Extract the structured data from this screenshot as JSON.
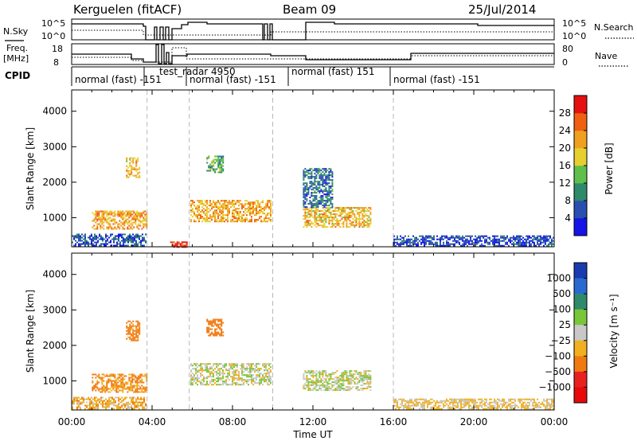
{
  "header": {
    "station": "Kerguelen (fitACF)",
    "beam": "Beam 09",
    "date": "25/Jul/2014"
  },
  "summary_panels": {
    "nsky_label": "N.Sky",
    "nsky_ticks": [
      "10^5",
      "10^0"
    ],
    "nsearch_label": "N.Search",
    "nsearch_ticks": [
      "10^5",
      "10^0"
    ],
    "freq_label_line1": "Freq.",
    "freq_label_line2": "[MHz]",
    "freq_ticks": [
      "18",
      "8"
    ],
    "nave_label": "Nave",
    "nave_ticks": [
      "80",
      "0"
    ],
    "cpid_label": "CPID",
    "cpid_segments": [
      {
        "label": "normal (fast) -151",
        "start_hr": 0.0,
        "end_hr": 3.75
      },
      {
        "label": "test_radar 4950",
        "start_hr": 3.75,
        "end_hr": 5.85
      },
      {
        "label": "normal (fast) -151",
        "start_hr": 5.85,
        "end_hr": 10.0
      },
      {
        "label": "normal (fast) 151",
        "start_hr": 10.0,
        "end_hr": 16.0
      },
      {
        "label": "normal (fast) -151",
        "start_hr": 16.0,
        "end_hr": 24.0
      }
    ]
  },
  "chart_data": [
    {
      "type": "heatmap",
      "quantity": "Power",
      "title": "",
      "xlabel": "",
      "ylabel": "Slant Range [km]",
      "xlim": [
        0,
        24
      ],
      "ylim": [
        180,
        4600
      ],
      "y_ticks": [
        "1000",
        "2000",
        "3000",
        "4000"
      ],
      "y_tick_values": [
        1000,
        2000,
        3000,
        4000
      ],
      "colorbar": {
        "label": "Power [dB]",
        "range": [
          0,
          32
        ],
        "ticks": [
          "4",
          "8",
          "12",
          "16",
          "20",
          "24",
          "28"
        ],
        "tick_values": [
          4,
          8,
          12,
          16,
          20,
          24,
          28
        ],
        "colors": [
          "#1515e6",
          "#2a4fb0",
          "#2e8a6a",
          "#5fbf4a",
          "#e6d030",
          "#f0a020",
          "#f06010",
          "#e61010"
        ]
      },
      "features": [
        {
          "t0": 0.0,
          "t1": 3.7,
          "r0": 200,
          "r1": 550,
          "value": 6
        },
        {
          "t0": 1.0,
          "t1": 3.7,
          "r0": 700,
          "r1": 1200,
          "value": 22
        },
        {
          "t0": 2.7,
          "t1": 3.4,
          "r0": 2150,
          "r1": 2700,
          "value": 20
        },
        {
          "t0": 4.9,
          "t1": 5.75,
          "r0": 180,
          "r1": 330,
          "value": 30
        },
        {
          "t0": 5.9,
          "t1": 9.9,
          "r0": 900,
          "r1": 1500,
          "value": 21
        },
        {
          "t0": 6.7,
          "t1": 7.5,
          "r0": 2300,
          "r1": 2750,
          "value": 12
        },
        {
          "t0": 11.5,
          "t1": 14.9,
          "r0": 750,
          "r1": 1300,
          "value": 20
        },
        {
          "t0": 11.5,
          "t1": 13.0,
          "r0": 1300,
          "r1": 2400,
          "value": 8
        },
        {
          "t0": 16.0,
          "t1": 24.0,
          "r0": 200,
          "r1": 500,
          "value": 5
        }
      ]
    },
    {
      "type": "heatmap",
      "quantity": "Velocity",
      "title": "",
      "xlabel": "Time UT",
      "ylabel": "Slant Range [km]",
      "xlim": [
        0,
        24
      ],
      "ylim": [
        180,
        4600
      ],
      "x_ticks": [
        "00:00",
        "04:00",
        "08:00",
        "12:00",
        "16:00",
        "20:00",
        "00:00"
      ],
      "x_tick_values": [
        0,
        4,
        8,
        12,
        16,
        20,
        24
      ],
      "y_ticks": [
        "1000",
        "2000",
        "3000",
        "4000"
      ],
      "y_tick_values": [
        1000,
        2000,
        3000,
        4000
      ],
      "colorbar": {
        "label": "Velocity [m s⁻¹]",
        "ticks": [
          "1000",
          "500",
          "100",
          "25",
          "−25",
          "−100",
          "−500",
          "−1000"
        ],
        "tick_values": [
          1000,
          500,
          100,
          25,
          -25,
          -100,
          -500,
          -1000
        ],
        "colors": [
          "#1a3ab0",
          "#2a6ad0",
          "#2e8a6a",
          "#7ac63a",
          "#c8c8c8",
          "#f0b020",
          "#f07a10",
          "#e82020",
          "#e60a0a"
        ]
      },
      "features": [
        {
          "t0": 1.0,
          "t1": 3.7,
          "r0": 700,
          "r1": 1200,
          "value": -120
        },
        {
          "t0": 2.7,
          "t1": 3.4,
          "r0": 2150,
          "r1": 2700,
          "value": -150
        },
        {
          "t0": 0.0,
          "t1": 3.7,
          "r0": 200,
          "r1": 550,
          "value": -60
        },
        {
          "t0": 5.9,
          "t1": 9.9,
          "r0": 900,
          "r1": 1500,
          "value": 0
        },
        {
          "t0": 6.7,
          "t1": 7.5,
          "r0": 2300,
          "r1": 2750,
          "value": -300
        },
        {
          "t0": 11.5,
          "t1": 14.9,
          "r0": 750,
          "r1": 1300,
          "value": 10
        },
        {
          "t0": 16.0,
          "t1": 24.0,
          "r0": 200,
          "r1": 500,
          "value": -40
        }
      ]
    }
  ]
}
